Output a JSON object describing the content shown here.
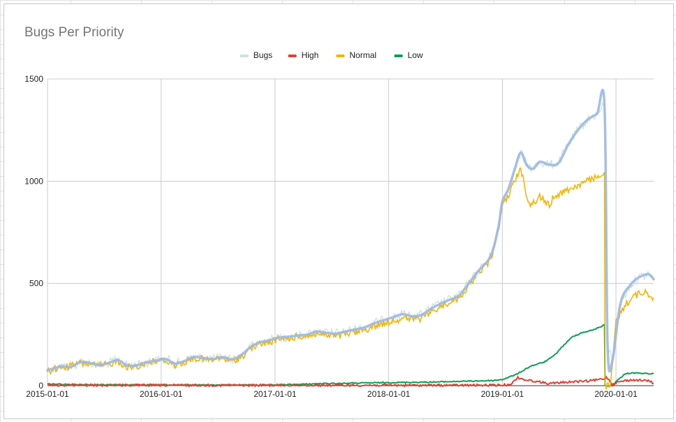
{
  "chart_data": {
    "type": "line",
    "title": "Bugs Per Priority",
    "xlabel": "",
    "ylabel": "",
    "ylim": [
      0,
      1500
    ],
    "yticks": [
      0,
      500,
      1000,
      1500
    ],
    "xlim": [
      "2015-01-01",
      "2020-05-01"
    ],
    "xticks": [
      "2015-01-01",
      "2016-01-01",
      "2017-01-01",
      "2018-01-01",
      "2019-01-01",
      "2020-01-01"
    ],
    "grid": true,
    "legend_position": "top",
    "series": [
      {
        "name": "Bugs",
        "color": "#cde2dc",
        "trend_color": "#9bb8e8",
        "points": [
          [
            "2015-01-01",
            75
          ],
          [
            "2015-02-15",
            95
          ],
          [
            "2015-03-15",
            90
          ],
          [
            "2015-04-15",
            115
          ],
          [
            "2015-05-15",
            112
          ],
          [
            "2015-06-15",
            100
          ],
          [
            "2015-07-15",
            110
          ],
          [
            "2015-08-15",
            125
          ],
          [
            "2015-09-15",
            98
          ],
          [
            "2015-10-15",
            100
          ],
          [
            "2015-11-15",
            115
          ],
          [
            "2015-12-15",
            122
          ],
          [
            "2016-01-15",
            130
          ],
          [
            "2016-02-15",
            108
          ],
          [
            "2016-03-15",
            120
          ],
          [
            "2016-04-15",
            140
          ],
          [
            "2016-05-15",
            135
          ],
          [
            "2016-06-15",
            130
          ],
          [
            "2016-07-15",
            140
          ],
          [
            "2016-08-15",
            128
          ],
          [
            "2016-09-15",
            150
          ],
          [
            "2016-10-15",
            190
          ],
          [
            "2016-11-15",
            212
          ],
          [
            "2016-12-15",
            222
          ],
          [
            "2017-01-15",
            235
          ],
          [
            "2017-02-15",
            240
          ],
          [
            "2017-03-15",
            245
          ],
          [
            "2017-04-15",
            250
          ],
          [
            "2017-05-15",
            265
          ],
          [
            "2017-06-15",
            258
          ],
          [
            "2017-07-15",
            255
          ],
          [
            "2017-08-15",
            265
          ],
          [
            "2017-09-15",
            275
          ],
          [
            "2017-10-15",
            285
          ],
          [
            "2017-11-15",
            305
          ],
          [
            "2017-12-15",
            320
          ],
          [
            "2018-01-15",
            335
          ],
          [
            "2018-02-15",
            350
          ],
          [
            "2018-03-15",
            340
          ],
          [
            "2018-04-15",
            345
          ],
          [
            "2018-05-15",
            375
          ],
          [
            "2018-06-15",
            400
          ],
          [
            "2018-07-15",
            420
          ],
          [
            "2018-08-15",
            440
          ],
          [
            "2018-09-15",
            500
          ],
          [
            "2018-10-15",
            560
          ],
          [
            "2018-11-15",
            610
          ],
          [
            "2018-12-01",
            660
          ],
          [
            "2018-12-20",
            780
          ],
          [
            "2019-01-01",
            900
          ],
          [
            "2019-01-20",
            960
          ],
          [
            "2019-02-10",
            1060
          ],
          [
            "2019-03-01",
            1140
          ],
          [
            "2019-03-20",
            1080
          ],
          [
            "2019-04-10",
            1060
          ],
          [
            "2019-05-01",
            1095
          ],
          [
            "2019-06-01",
            1080
          ],
          [
            "2019-07-01",
            1090
          ],
          [
            "2019-08-01",
            1180
          ],
          [
            "2019-09-01",
            1250
          ],
          [
            "2019-10-01",
            1300
          ],
          [
            "2019-11-01",
            1330
          ],
          [
            "2019-11-25",
            1370
          ],
          [
            "2019-12-05",
            200
          ],
          [
            "2019-12-20",
            120
          ],
          [
            "2020-01-15",
            400
          ],
          [
            "2020-02-15",
            490
          ],
          [
            "2020-03-15",
            530
          ],
          [
            "2020-04-15",
            545
          ],
          [
            "2020-05-01",
            520
          ]
        ]
      },
      {
        "name": "High",
        "color": "#db4437",
        "points": [
          [
            "2015-01-01",
            2
          ],
          [
            "2016-01-01",
            2
          ],
          [
            "2017-01-01",
            2
          ],
          [
            "2018-01-01",
            2
          ],
          [
            "2018-12-15",
            2
          ],
          [
            "2019-01-15",
            4
          ],
          [
            "2019-02-01",
            12
          ],
          [
            "2019-02-20",
            40
          ],
          [
            "2019-03-10",
            30
          ],
          [
            "2019-04-01",
            25
          ],
          [
            "2019-05-01",
            18
          ],
          [
            "2019-06-01",
            10
          ],
          [
            "2019-07-01",
            14
          ],
          [
            "2019-08-01",
            18
          ],
          [
            "2019-09-01",
            20
          ],
          [
            "2019-10-01",
            22
          ],
          [
            "2019-11-01",
            28
          ],
          [
            "2019-11-25",
            35
          ],
          [
            "2019-12-01",
            40
          ],
          [
            "2019-12-10",
            30
          ],
          [
            "2019-12-20",
            5
          ],
          [
            "2020-01-01",
            15
          ],
          [
            "2020-02-01",
            25
          ],
          [
            "2020-03-01",
            28
          ],
          [
            "2020-04-01",
            25
          ],
          [
            "2020-04-20",
            22
          ],
          [
            "2020-05-01",
            10
          ]
        ]
      },
      {
        "name": "Normal",
        "color": "#f4b400",
        "points": [
          [
            "2015-01-01",
            70
          ],
          [
            "2015-02-15",
            90
          ],
          [
            "2015-03-15",
            95
          ],
          [
            "2015-04-15",
            110
          ],
          [
            "2015-05-15",
            108
          ],
          [
            "2015-06-15",
            95
          ],
          [
            "2015-07-15",
            105
          ],
          [
            "2015-08-15",
            120
          ],
          [
            "2015-09-15",
            90
          ],
          [
            "2015-10-15",
            95
          ],
          [
            "2015-11-15",
            110
          ],
          [
            "2015-12-15",
            120
          ],
          [
            "2016-01-15",
            125
          ],
          [
            "2016-02-15",
            100
          ],
          [
            "2016-03-15",
            115
          ],
          [
            "2016-04-15",
            135
          ],
          [
            "2016-05-15",
            130
          ],
          [
            "2016-06-15",
            125
          ],
          [
            "2016-07-15",
            135
          ],
          [
            "2016-08-15",
            120
          ],
          [
            "2016-09-15",
            140
          ],
          [
            "2016-10-15",
            185
          ],
          [
            "2016-11-15",
            205
          ],
          [
            "2016-12-15",
            215
          ],
          [
            "2017-01-15",
            228
          ],
          [
            "2017-02-15",
            232
          ],
          [
            "2017-03-15",
            240
          ],
          [
            "2017-04-15",
            245
          ],
          [
            "2017-05-15",
            255
          ],
          [
            "2017-06-15",
            248
          ],
          [
            "2017-07-15",
            240
          ],
          [
            "2017-08-15",
            250
          ],
          [
            "2017-09-15",
            262
          ],
          [
            "2017-10-15",
            272
          ],
          [
            "2017-11-15",
            290
          ],
          [
            "2017-12-15",
            305
          ],
          [
            "2018-01-15",
            318
          ],
          [
            "2018-02-15",
            330
          ],
          [
            "2018-03-15",
            325
          ],
          [
            "2018-04-15",
            330
          ],
          [
            "2018-05-15",
            360
          ],
          [
            "2018-06-15",
            385
          ],
          [
            "2018-07-15",
            410
          ],
          [
            "2018-08-15",
            430
          ],
          [
            "2018-09-15",
            490
          ],
          [
            "2018-10-15",
            550
          ],
          [
            "2018-11-15",
            600
          ],
          [
            "2018-12-01",
            650
          ],
          [
            "2018-12-20",
            770
          ],
          [
            "2019-01-01",
            880
          ],
          [
            "2019-01-20",
            930
          ],
          [
            "2019-02-10",
            1000
          ],
          [
            "2019-03-01",
            1070
          ],
          [
            "2019-03-15",
            960
          ],
          [
            "2019-04-01",
            880
          ],
          [
            "2019-05-01",
            925
          ],
          [
            "2019-06-01",
            880
          ],
          [
            "2019-06-15",
            925
          ],
          [
            "2019-08-01",
            960
          ],
          [
            "2019-09-01",
            980
          ],
          [
            "2019-10-01",
            1000
          ],
          [
            "2019-11-01",
            1020
          ],
          [
            "2019-11-25",
            1045
          ],
          [
            "2019-11-27",
            0
          ],
          [
            "2019-12-15",
            0
          ],
          [
            "2020-01-01",
            310
          ],
          [
            "2020-02-01",
            400
          ],
          [
            "2020-03-01",
            440
          ],
          [
            "2020-04-01",
            460
          ],
          [
            "2020-05-01",
            430
          ]
        ]
      },
      {
        "name": "Low",
        "color": "#0f9d58",
        "points": [
          [
            "2015-01-01",
            8
          ],
          [
            "2015-06-01",
            5
          ],
          [
            "2016-01-01",
            4
          ],
          [
            "2016-06-01",
            3
          ],
          [
            "2017-01-01",
            3
          ],
          [
            "2017-06-01",
            10
          ],
          [
            "2018-01-01",
            15
          ],
          [
            "2018-06-01",
            18
          ],
          [
            "2018-12-01",
            25
          ],
          [
            "2019-01-01",
            30
          ],
          [
            "2019-02-15",
            55
          ],
          [
            "2019-04-01",
            95
          ],
          [
            "2019-05-15",
            115
          ],
          [
            "2019-06-15",
            145
          ],
          [
            "2019-07-15",
            195
          ],
          [
            "2019-08-15",
            240
          ],
          [
            "2019-09-15",
            260
          ],
          [
            "2019-10-15",
            270
          ],
          [
            "2019-11-15",
            290
          ],
          [
            "2019-11-25",
            298
          ],
          [
            "2019-11-27",
            0
          ],
          [
            "2019-12-20",
            0
          ],
          [
            "2020-01-01",
            20
          ],
          [
            "2020-02-01",
            60
          ],
          [
            "2020-03-01",
            62
          ],
          [
            "2020-04-01",
            60
          ],
          [
            "2020-05-01",
            58
          ]
        ]
      }
    ]
  }
}
